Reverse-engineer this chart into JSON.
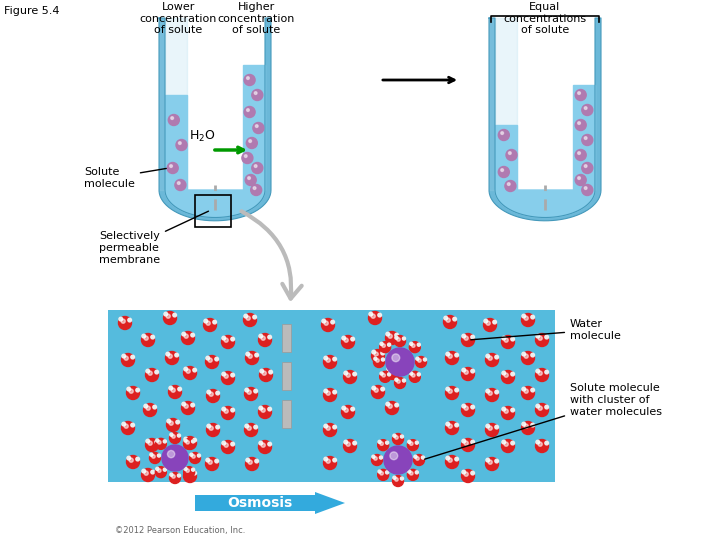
{
  "figure_label": "Figure 5.4",
  "title1": "Lower\nconcentration\nof solute",
  "title2": "Higher\nconcentration\nof solute",
  "title3": "Equal\nconcentrations\nof solute",
  "label_solute_molecule": "Solute\nmolecule",
  "label_sel_perm": "Selectively\npermeable\nmembrane",
  "label_water_molecule": "Water\nmolecule",
  "label_solute_cluster": "Solute molecule\nwith cluster of\nwater molecules",
  "label_osmosis": "Osmosis",
  "bg_color": "#ffffff",
  "water_color": "#87CEEB",
  "tube_outer_color": "#6BB8D8",
  "tube_glass_color": "#B8E0F0",
  "solute_color": "#B07AB0",
  "membrane_color": "#AAAAAA",
  "osmosis_arrow_color": "#33AADD",
  "panel_bg": "#55BBDD",
  "water_mol_color": "#DD2222",
  "solute_cluster_color": "#7744AA",
  "font_size_label": 8,
  "font_size_title": 8,
  "font_size_osmosis": 10,
  "copyright": "©2012 Pearson Education, Inc."
}
